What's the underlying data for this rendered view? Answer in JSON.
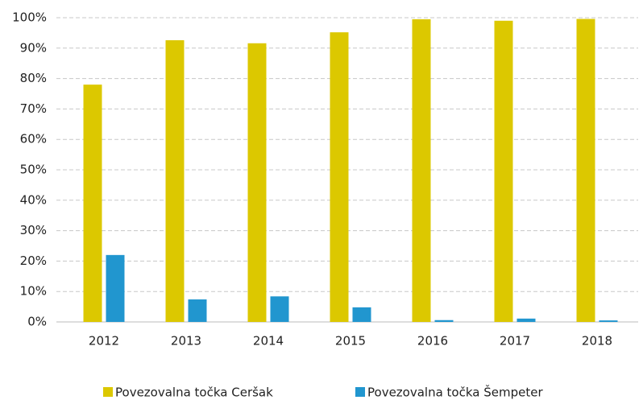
{
  "chart_data": {
    "type": "bar",
    "categories": [
      "2012",
      "2013",
      "2014",
      "2015",
      "2016",
      "2017",
      "2018"
    ],
    "series": [
      {
        "name": "Povezovalna točka Ceršak",
        "color": "#dcc800",
        "values": [
          78,
          92.6,
          91.6,
          95.2,
          99.5,
          99,
          99.6
        ]
      },
      {
        "name": "Povezovalna točka Šempeter",
        "color": "#2196cf",
        "values": [
          22,
          7.4,
          8.4,
          4.8,
          0.6,
          1.1,
          0.5
        ]
      }
    ],
    "ylim": [
      0,
      100
    ],
    "yticks": [
      {
        "value": 0,
        "label": "0%"
      },
      {
        "value": 10,
        "label": "10%"
      },
      {
        "value": 20,
        "label": "20%"
      },
      {
        "value": 30,
        "label": "30%"
      },
      {
        "value": 40,
        "label": "40%"
      },
      {
        "value": 50,
        "label": "50%"
      },
      {
        "value": 60,
        "label": "60%"
      },
      {
        "value": 70,
        "label": "70%"
      },
      {
        "value": 80,
        "label": "80%"
      },
      {
        "value": 90,
        "label": "90%"
      },
      {
        "value": 100,
        "label": "100%"
      }
    ],
    "grid": true,
    "legend": "bottom"
  }
}
